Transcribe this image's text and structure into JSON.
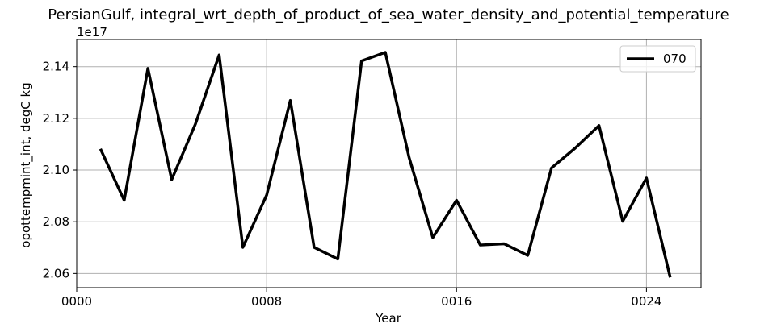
{
  "chart_data": {
    "type": "line",
    "title": "PersianGulf, integral_wrt_depth_of_product_of_sea_water_density_and_potential_temperature",
    "xlabel": "Year",
    "ylabel": "opottempmint_int, degC kg",
    "y_offset_label": "1e17",
    "xlim": [
      0,
      26.3
    ],
    "ylim": [
      2.0545,
      2.1505
    ],
    "x_ticks": [
      0,
      8,
      16,
      24
    ],
    "x_tick_labels": [
      "0000",
      "0008",
      "0016",
      "0024"
    ],
    "y_ticks": [
      2.06,
      2.08,
      2.1,
      2.12,
      2.14
    ],
    "y_tick_labels": [
      "2.06",
      "2.08",
      "2.10",
      "2.12",
      "2.14"
    ],
    "grid": true,
    "legend_position": "upper right",
    "series": [
      {
        "name": "070",
        "color": "#000000",
        "x": [
          1,
          2,
          3,
          4,
          5,
          6,
          7,
          8,
          9,
          10,
          11,
          12,
          13,
          14,
          15,
          16,
          17,
          18,
          19,
          20,
          21,
          22,
          23,
          24,
          25
        ],
        "y": [
          2.1082,
          2.0883,
          2.1393,
          2.0963,
          2.1178,
          2.1445,
          2.0701,
          2.0903,
          2.1269,
          2.0701,
          2.0656,
          2.1422,
          2.1455,
          2.1049,
          2.0739,
          2.0883,
          2.071,
          2.0715,
          2.067,
          2.1008,
          2.1085,
          2.1172,
          2.0802,
          2.0969,
          2.0585
        ]
      }
    ]
  }
}
